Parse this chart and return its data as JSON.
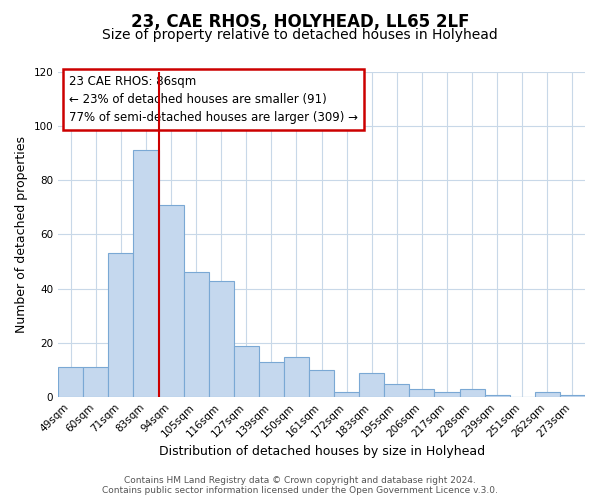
{
  "title": "23, CAE RHOS, HOLYHEAD, LL65 2LF",
  "subtitle": "Size of property relative to detached houses in Holyhead",
  "xlabel": "Distribution of detached houses by size in Holyhead",
  "ylabel": "Number of detached properties",
  "bar_labels": [
    "49sqm",
    "60sqm",
    "71sqm",
    "83sqm",
    "94sqm",
    "105sqm",
    "116sqm",
    "127sqm",
    "139sqm",
    "150sqm",
    "161sqm",
    "172sqm",
    "183sqm",
    "195sqm",
    "206sqm",
    "217sqm",
    "228sqm",
    "239sqm",
    "251sqm",
    "262sqm",
    "273sqm"
  ],
  "bar_values": [
    11,
    11,
    53,
    91,
    71,
    46,
    43,
    19,
    13,
    15,
    10,
    2,
    9,
    5,
    3,
    2,
    3,
    1,
    0,
    2,
    1
  ],
  "bar_color": "#c5d8ee",
  "bar_edge_color": "#7aa8d4",
  "ylim": [
    0,
    120
  ],
  "yticks": [
    0,
    20,
    40,
    60,
    80,
    100,
    120
  ],
  "vline_index": 3,
  "vline_color": "#cc0000",
  "annotation_title": "23 CAE RHOS: 86sqm",
  "annotation_line1": "← 23% of detached houses are smaller (91)",
  "annotation_line2": "77% of semi-detached houses are larger (309) →",
  "annotation_box_color": "#ffffff",
  "annotation_box_edge": "#cc0000",
  "footer1": "Contains HM Land Registry data © Crown copyright and database right 2024.",
  "footer2": "Contains public sector information licensed under the Open Government Licence v.3.0.",
  "bg_color": "#ffffff",
  "grid_color": "#c8d8e8",
  "title_fontsize": 12,
  "subtitle_fontsize": 10,
  "axis_label_fontsize": 9,
  "tick_fontsize": 7.5,
  "annotation_fontsize": 8.5,
  "footer_fontsize": 6.5
}
